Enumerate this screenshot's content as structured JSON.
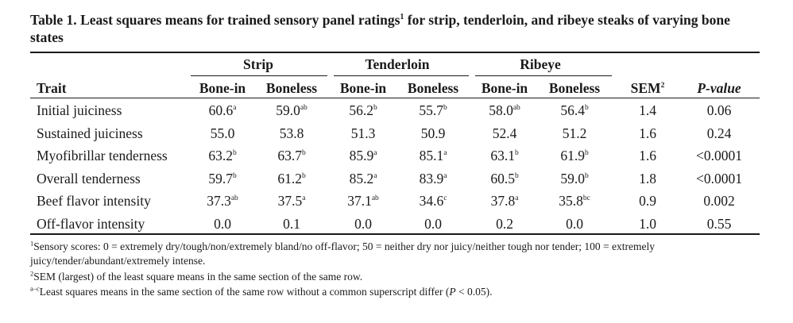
{
  "caption": {
    "label": "Table 1.",
    "text_a": " Least squares means for trained sensory panel ratings",
    "sup": "1",
    "text_b": " for strip, tenderloin, and ribeye steaks of varying bone states"
  },
  "groups": [
    "Strip",
    "Tenderloin",
    "Ribeye"
  ],
  "columns": [
    "Trait",
    "Bone-in",
    "Boneless",
    "Bone-in",
    "Boneless",
    "Bone-in",
    "Boneless",
    "SEM",
    "P-value"
  ],
  "sem_sup": "2",
  "rows": [
    {
      "trait": "Initial juiciness",
      "cells": [
        [
          "60.6",
          "a"
        ],
        [
          "59.0",
          "ab"
        ],
        [
          "56.2",
          "b"
        ],
        [
          "55.7",
          "b"
        ],
        [
          "58.0",
          "ab"
        ],
        [
          "56.4",
          "b"
        ],
        [
          "1.4",
          ""
        ],
        [
          "0.06",
          ""
        ]
      ]
    },
    {
      "trait": "Sustained juiciness",
      "cells": [
        [
          "55.0",
          ""
        ],
        [
          "53.8",
          ""
        ],
        [
          "51.3",
          ""
        ],
        [
          "50.9",
          ""
        ],
        [
          "52.4",
          ""
        ],
        [
          "51.2",
          ""
        ],
        [
          "1.6",
          ""
        ],
        [
          "0.24",
          ""
        ]
      ]
    },
    {
      "trait": "Myofibrillar tenderness",
      "cells": [
        [
          "63.2",
          "b"
        ],
        [
          "63.7",
          "b"
        ],
        [
          "85.9",
          "a"
        ],
        [
          "85.1",
          "a"
        ],
        [
          "63.1",
          "b"
        ],
        [
          "61.9",
          "b"
        ],
        [
          "1.6",
          ""
        ],
        [
          "<0.0001",
          ""
        ]
      ]
    },
    {
      "trait": "Overall tenderness",
      "cells": [
        [
          "59.7",
          "b"
        ],
        [
          "61.2",
          "b"
        ],
        [
          "85.2",
          "a"
        ],
        [
          "83.9",
          "a"
        ],
        [
          "60.5",
          "b"
        ],
        [
          "59.0",
          "b"
        ],
        [
          "1.8",
          ""
        ],
        [
          "<0.0001",
          ""
        ]
      ]
    },
    {
      "trait": "Beef flavor intensity",
      "cells": [
        [
          "37.3",
          "ab"
        ],
        [
          "37.5",
          "a"
        ],
        [
          "37.1",
          "ab"
        ],
        [
          "34.6",
          "c"
        ],
        [
          "37.8",
          "a"
        ],
        [
          "35.8",
          "bc"
        ],
        [
          "0.9",
          ""
        ],
        [
          "0.002",
          ""
        ]
      ]
    },
    {
      "trait": "Off-flavor intensity",
      "cells": [
        [
          "0.0",
          ""
        ],
        [
          "0.1",
          ""
        ],
        [
          "0.0",
          ""
        ],
        [
          "0.0",
          ""
        ],
        [
          "0.2",
          ""
        ],
        [
          "0.0",
          ""
        ],
        [
          "1.0",
          ""
        ],
        [
          "0.55",
          ""
        ]
      ]
    }
  ],
  "footnotes": {
    "f1_sup": "1",
    "f1_text": "Sensory scores: 0 = extremely dry/tough/non/extremely bland/no off-flavor; 50 = neither dry nor juicy/neither tough nor tender; 100 = extremely juicy/tender/abundant/extremely intense.",
    "f2_sup": "2",
    "f2_text": "SEM (largest) of the least square means in the same section of the same row.",
    "f3_sup": "a–c",
    "f3_text_a": "Least squares means in the same section of the same row without a common superscript differ (",
    "f3_p": "P",
    "f3_text_b": " < 0.05)."
  }
}
